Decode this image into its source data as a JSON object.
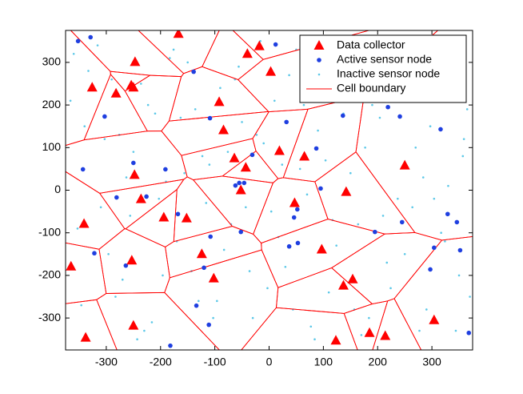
{
  "chart_data": {
    "type": "scatter",
    "xlim": [
      -375,
      375
    ],
    "ylim": [
      -375,
      375
    ],
    "xticks": [
      -300,
      -200,
      -100,
      0,
      100,
      200,
      300
    ],
    "yticks": [
      -300,
      -200,
      -100,
      0,
      100,
      200,
      300
    ],
    "grid": false,
    "legend": "upper right",
    "series": [
      {
        "name": "Data collector",
        "color": "#ff0000",
        "marker": "triangle",
        "x": [
          -167,
          -18,
          -40,
          -247,
          3,
          -326,
          -254,
          -250,
          -282,
          -92,
          -84,
          19,
          65,
          -64,
          -43,
          250,
          -248,
          -52,
          142,
          -236,
          47,
          -152,
          -194,
          -341,
          97,
          -124,
          -253,
          -365,
          -102,
          154,
          137,
          304,
          -250,
          185,
          -338,
          214,
          123
        ],
        "values": [
          367,
          338,
          320,
          301,
          278,
          241,
          246,
          241,
          227,
          207,
          141,
          92,
          79,
          75,
          53,
          58,
          36,
          0,
          -4,
          -21,
          -30,
          -66,
          -64,
          -79,
          -139,
          -150,
          -165,
          -179,
          -207,
          -209,
          -224,
          -305,
          -318,
          -335,
          -346,
          -342,
          -353
        ]
      },
      {
        "name": "Active sensor node",
        "color": "#1f3fe0",
        "marker": "dot",
        "x": [
          -329,
          -352,
          12,
          -139,
          -303,
          -109,
          32,
          87,
          136,
          219,
          241,
          316,
          -343,
          -250,
          -191,
          -31,
          -55,
          -46,
          -62,
          95,
          -281,
          -226,
          52,
          46,
          245,
          195,
          329,
          346,
          352,
          -322,
          -264,
          -168,
          -108,
          -120,
          -52,
          53,
          37,
          304,
          297,
          -134,
          -111,
          -182,
          368
        ],
        "values": [
          359,
          350,
          342,
          278,
          173,
          169,
          160,
          98,
          175,
          195,
          173,
          143,
          49,
          64,
          49,
          83,
          17,
          17,
          11,
          4,
          -17,
          -15,
          -45,
          -64,
          -75,
          -98,
          -56,
          -75,
          -141,
          -148,
          -177,
          -56,
          -109,
          -182,
          -98,
          -124,
          -132,
          -135,
          -186,
          -271,
          -316,
          -365,
          -335
        ]
      },
      {
        "name": "Inactive sensor node",
        "color": "#5cc8e8",
        "marker": "point",
        "x": [
          -360,
          -340,
          -310,
          -290,
          -270,
          -250,
          -230,
          -210,
          -190,
          -170,
          -150,
          -130,
          -110,
          -90,
          -70,
          -50,
          -30,
          -10,
          10,
          30,
          50,
          70,
          90,
          110,
          130,
          150,
          170,
          190,
          210,
          230,
          250,
          270,
          290,
          310,
          330,
          350,
          365,
          -353,
          -333,
          -303,
          -283,
          -263,
          -243,
          -223,
          -203,
          -183,
          -163,
          -143,
          -123,
          -103,
          -83,
          -63,
          -43,
          -23,
          -3,
          17,
          37,
          57,
          77,
          97,
          117,
          137,
          157,
          177,
          197,
          217,
          237,
          257,
          277,
          297,
          317,
          337,
          357,
          370,
          -366,
          -346,
          -316,
          -296,
          -276,
          -256,
          -236,
          -216,
          -196,
          -176,
          -156,
          -136,
          -116,
          -96,
          -76,
          -56,
          -36,
          -16,
          4,
          24,
          44,
          64,
          84,
          104,
          124,
          144,
          164,
          184,
          204,
          224,
          244,
          264,
          284,
          304,
          324,
          344,
          359
        ],
        "values": [
          320,
          150,
          -40,
          260,
          -210,
          90,
          -330,
          180,
          20,
          -120,
          300,
          -260,
          60,
          240,
          -80,
          160,
          -300,
          110,
          210,
          -180,
          330,
          -10,
          140,
          -240,
          280,
          40,
          -340,
          200,
          -60,
          310,
          -150,
          100,
          -280,
          250,
          10,
          -200,
          190,
          -90,
          280,
          120,
          -250,
          30,
          -350,
          200,
          -20,
          310,
          170,
          -190,
          80,
          -300,
          -140,
          260,
          -40,
          130,
          -230,
          -110,
          270,
          50,
          -320,
          230,
          -70,
          180,
          -280,
          100,
          340,
          -170,
          -20,
          220,
          -330,
          150,
          -100,
          300,
          80,
          -250,
          210,
          -270,
          340,
          -150,
          130,
          -60,
          250,
          -310,
          -200,
          330,
          40,
          190,
          -30,
          -260,
          90,
          290,
          -190,
          350,
          -50,
          60,
          -280,
          200,
          -350,
          70,
          -130,
          230,
          -80,
          -300,
          170,
          -230,
          340,
          -40,
          30,
          -20,
          -120,
          -330,
          120
        ]
      },
      {
        "name": "Cell boundary",
        "color": "#ff0000",
        "marker": "voronoi"
      }
    ]
  }
}
